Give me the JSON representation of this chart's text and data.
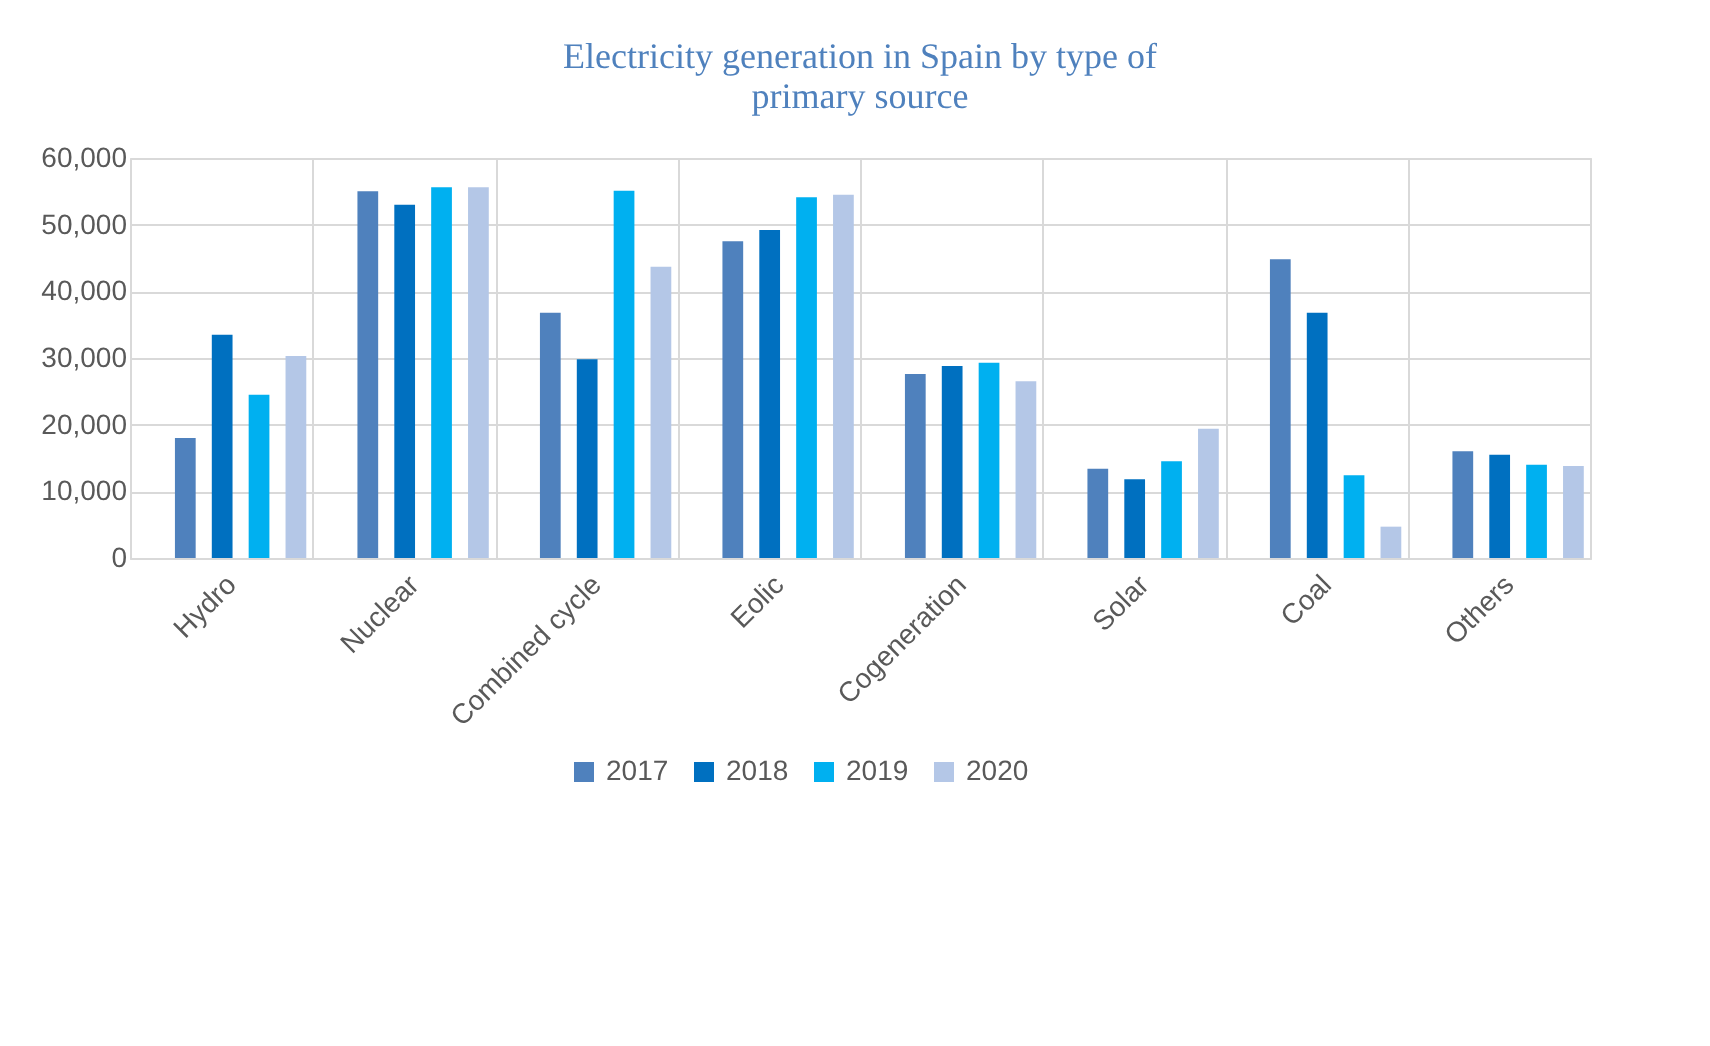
{
  "chart_data": {
    "type": "bar",
    "title": "Electricity generation in Spain by type of primary source",
    "categories": [
      "Hydro",
      "Nuclear",
      "Combined cycle",
      "Eolic",
      "Cogeneration",
      "Solar",
      "Coal",
      "Others"
    ],
    "series": [
      {
        "name": "2017",
        "color": "#4f81bd",
        "values": [
          18000,
          55000,
          36800,
          47500,
          27600,
          13400,
          44800,
          16000
        ]
      },
      {
        "name": "2018",
        "color": "#0070c0",
        "values": [
          33500,
          53000,
          29800,
          49200,
          28800,
          11800,
          36800,
          15500
        ]
      },
      {
        "name": "2019",
        "color": "#00b0f0",
        "values": [
          24500,
          55600,
          55100,
          54100,
          29300,
          14500,
          12400,
          14000
        ]
      },
      {
        "name": "2020",
        "color": "#b4c7e7",
        "values": [
          30300,
          55600,
          43700,
          54500,
          26500,
          19400,
          4700,
          13800
        ]
      }
    ],
    "ylim": [
      0,
      60000
    ],
    "yticks": [
      0,
      {
        "value": 10000,
        "label": "10,000"
      },
      {
        "value": 20000,
        "label": "20,000"
      },
      {
        "value": 30000,
        "label": "30,000"
      },
      {
        "value": 40000,
        "label": "40,000"
      },
      {
        "value": 50000,
        "label": "50,000"
      },
      {
        "value": 60000,
        "label": "60,000"
      }
    ],
    "grid": true,
    "legend": "bottom"
  }
}
